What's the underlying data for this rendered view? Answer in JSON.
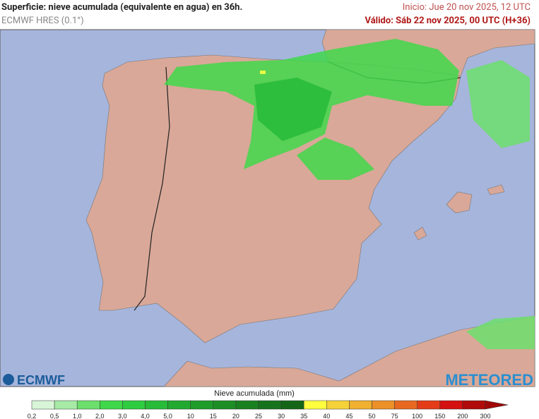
{
  "header": {
    "title": "Superficie: nieve acumulada (equivalente en agua) en 36h.",
    "model": "ECMWF HRES (0.1°)",
    "init": "Inicio: Jue 20 nov 2025, 12 UTC",
    "valid": "Válido: Sáb 22 nov 2025, 00 UTC (H+36)"
  },
  "logos": {
    "left": "ECMWF",
    "right": "METEORED"
  },
  "legend": {
    "title": "Nieve acumulada (mm)",
    "ticks": [
      "0,2",
      "0,5",
      "1,0",
      "2,0",
      "3,0",
      "4,0",
      "5,0",
      "10",
      "15",
      "20",
      "25",
      "30",
      "35",
      "40",
      "45",
      "50",
      "75",
      "100",
      "150",
      "200",
      "300"
    ],
    "colors": [
      "#d8f5d8",
      "#a6eaa6",
      "#6cdf6c",
      "#3fd84a",
      "#2ecc40",
      "#27bb38",
      "#22aa30",
      "#1f9c2a",
      "#1c8e25",
      "#198020",
      "#16731c",
      "#136617",
      "#ffff40",
      "#f5d23a",
      "#f0b030",
      "#ec9028",
      "#e86820",
      "#e43c18",
      "#d41010",
      "#b00a0a"
    ],
    "arrow_color": "#a00808"
  }
}
